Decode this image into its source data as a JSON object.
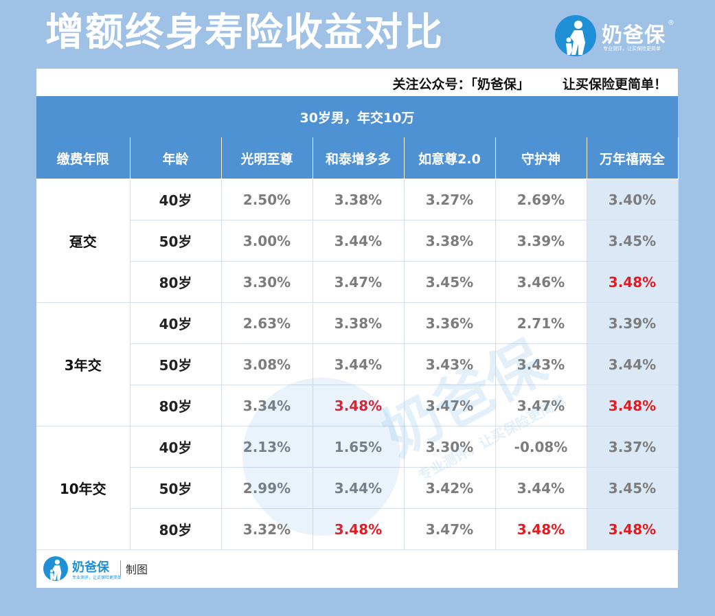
{
  "header": {
    "title": "增额终身寿险收益对比",
    "brand_name": "奶爸保",
    "brand_reg": "®",
    "brand_slogan": "专业测评，让买保险更简单"
  },
  "follow": {
    "left": "关注公众号：「奶爸保」",
    "right": "让买保险更简单！"
  },
  "banner": "30岁男，年交10万",
  "columns": [
    "缴费年限",
    "年龄",
    "光明至尊",
    "和泰增多多",
    "如意尊2.0",
    "守护神",
    "万年禧两全"
  ],
  "groups": [
    {
      "label": "趸交",
      "rows": [
        {
          "age": "40岁",
          "values": [
            "2.50%",
            "3.38%",
            "3.27%",
            "2.69%",
            "3.40%"
          ],
          "red": [
            false,
            false,
            false,
            false,
            false
          ]
        },
        {
          "age": "50岁",
          "values": [
            "3.00%",
            "3.44%",
            "3.38%",
            "3.39%",
            "3.45%"
          ],
          "red": [
            false,
            false,
            false,
            false,
            false
          ]
        },
        {
          "age": "80岁",
          "values": [
            "3.30%",
            "3.47%",
            "3.45%",
            "3.46%",
            "3.48%"
          ],
          "red": [
            false,
            false,
            false,
            false,
            true
          ]
        }
      ]
    },
    {
      "label": "3年交",
      "rows": [
        {
          "age": "40岁",
          "values": [
            "2.63%",
            "3.38%",
            "3.36%",
            "2.71%",
            "3.39%"
          ],
          "red": [
            false,
            false,
            false,
            false,
            false
          ]
        },
        {
          "age": "50岁",
          "values": [
            "3.08%",
            "3.44%",
            "3.43%",
            "3.43%",
            "3.44%"
          ],
          "red": [
            false,
            false,
            false,
            false,
            false
          ]
        },
        {
          "age": "80岁",
          "values": [
            "3.34%",
            "3.48%",
            "3.47%",
            "3.47%",
            "3.48%"
          ],
          "red": [
            false,
            true,
            false,
            false,
            true
          ]
        }
      ]
    },
    {
      "label": "10年交",
      "rows": [
        {
          "age": "40岁",
          "values": [
            "2.13%",
            "1.65%",
            "3.30%",
            "-0.08%",
            "3.37%"
          ],
          "red": [
            false,
            false,
            false,
            false,
            false
          ]
        },
        {
          "age": "50岁",
          "values": [
            "2.99%",
            "3.44%",
            "3.42%",
            "3.44%",
            "3.45%"
          ],
          "red": [
            false,
            false,
            false,
            false,
            false
          ]
        },
        {
          "age": "80岁",
          "values": [
            "3.32%",
            "3.48%",
            "3.47%",
            "3.48%",
            "3.48%"
          ],
          "red": [
            false,
            true,
            false,
            true,
            true
          ]
        }
      ]
    }
  ],
  "footer": {
    "brand_name": "奶爸保",
    "brand_slogan": "专业测评，让买保险更简单",
    "made_label": "制图"
  },
  "watermark": {
    "name": "奶爸保",
    "slogan": "专业测评，让买保险更简单"
  },
  "colors": {
    "background": "#9ec1e5",
    "header_blue": "#4f92d4",
    "highlight_red": "#e8191f",
    "last_column_bg": "#dbe8f5"
  }
}
